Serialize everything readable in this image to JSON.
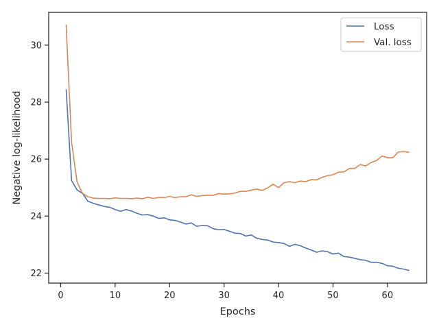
{
  "chart_data": {
    "type": "line",
    "title": "",
    "xlabel": "Epochs",
    "ylabel": "Negative log-likelihood",
    "xlim": [
      -2.2,
      67.2
    ],
    "ylim": [
      21.65,
      31.15
    ],
    "xticks": [
      0,
      10,
      20,
      30,
      40,
      50,
      60
    ],
    "yticks": [
      22,
      24,
      26,
      28,
      30
    ],
    "grid": false,
    "legend": "top-right",
    "x": [
      1,
      2,
      3,
      4,
      5,
      6,
      7,
      8,
      9,
      10,
      11,
      12,
      13,
      14,
      15,
      16,
      17,
      18,
      19,
      20,
      21,
      22,
      23,
      24,
      25,
      26,
      27,
      28,
      29,
      30,
      31,
      32,
      33,
      34,
      35,
      36,
      37,
      38,
      39,
      40,
      41,
      42,
      43,
      44,
      45,
      46,
      47,
      48,
      49,
      50,
      51,
      52,
      53,
      54,
      55,
      56,
      57,
      58,
      59,
      60,
      61,
      62,
      63,
      64
    ],
    "series": [
      {
        "name": "Loss",
        "color": "#4c72b0",
        "values": [
          28.45,
          25.25,
          24.92,
          24.8,
          24.52,
          24.45,
          24.39,
          24.34,
          24.31,
          24.23,
          24.17,
          24.23,
          24.18,
          24.1,
          24.04,
          24.05,
          24.0,
          23.92,
          23.94,
          23.87,
          23.85,
          23.79,
          23.72,
          23.76,
          23.64,
          23.67,
          23.66,
          23.56,
          23.52,
          23.53,
          23.47,
          23.4,
          23.39,
          23.3,
          23.34,
          23.22,
          23.18,
          23.16,
          23.09,
          23.07,
          23.04,
          22.94,
          23.01,
          22.96,
          22.88,
          22.81,
          22.73,
          22.78,
          22.75,
          22.67,
          22.7,
          22.58,
          22.56,
          22.52,
          22.47,
          22.45,
          22.38,
          22.38,
          22.34,
          22.26,
          22.24,
          22.17,
          22.14,
          22.09
        ]
      },
      {
        "name": "Val. loss",
        "color": "#dd8452",
        "values": [
          30.72,
          26.6,
          25.2,
          24.8,
          24.68,
          24.63,
          24.62,
          24.62,
          24.61,
          24.64,
          24.62,
          24.62,
          24.61,
          24.63,
          24.61,
          24.66,
          24.62,
          24.65,
          24.65,
          24.69,
          24.65,
          24.68,
          24.68,
          24.75,
          24.69,
          24.72,
          24.73,
          24.73,
          24.79,
          24.77,
          24.78,
          24.81,
          24.87,
          24.87,
          24.91,
          24.95,
          24.9,
          24.99,
          25.12,
          25.0,
          25.17,
          25.21,
          25.17,
          25.23,
          25.21,
          25.28,
          25.27,
          25.36,
          25.42,
          25.45,
          25.54,
          25.55,
          25.67,
          25.67,
          25.81,
          25.76,
          25.88,
          25.95,
          26.11,
          26.05,
          26.05,
          26.25,
          26.26,
          26.24
        ]
      }
    ]
  }
}
